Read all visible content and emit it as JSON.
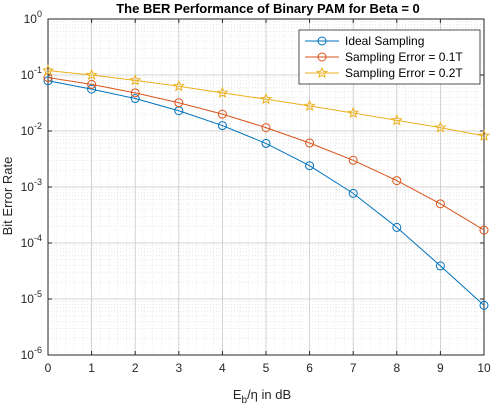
{
  "chart_data": {
    "type": "line",
    "title": "The BER Performance of Binary PAM for Beta = 0",
    "xlabel_main": "E",
    "xlabel_sub": "b",
    "xlabel_rest": "/η in dB",
    "ylabel": "Bit Error Rate",
    "x": [
      0,
      1,
      2,
      3,
      4,
      5,
      6,
      7,
      8,
      9,
      10
    ],
    "xlim": [
      0,
      10
    ],
    "ylim": [
      1e-06,
      1
    ],
    "yscale": "log",
    "grid": true,
    "minor_grid": true,
    "legend_placement": "top-right",
    "x_tick_labels": [
      "0",
      "1",
      "2",
      "3",
      "4",
      "5",
      "6",
      "7",
      "8",
      "9",
      "10"
    ],
    "y_ticks": [
      {
        "value": 1,
        "base": "10",
        "exp": "0"
      },
      {
        "value": 0.1,
        "base": "10",
        "exp": "-1"
      },
      {
        "value": 0.01,
        "base": "10",
        "exp": "-2"
      },
      {
        "value": 0.001,
        "base": "10",
        "exp": "-3"
      },
      {
        "value": 0.0001,
        "base": "10",
        "exp": "-4"
      },
      {
        "value": 1e-05,
        "base": "10",
        "exp": "-5"
      },
      {
        "value": 1e-06,
        "base": "10",
        "exp": "-6"
      }
    ],
    "series": [
      {
        "name": "Ideal Sampling",
        "marker": "circle",
        "color": "#0072BD",
        "values": [
          0.079,
          0.056,
          0.038,
          0.023,
          0.0125,
          0.006,
          0.0024,
          0.00077,
          0.00019,
          3.9e-05,
          7.7e-06
        ]
      },
      {
        "name": "Sampling Error = 0.1T",
        "marker": "circle",
        "color": "#D95319",
        "values": [
          0.09,
          0.068,
          0.048,
          0.032,
          0.02,
          0.0115,
          0.0061,
          0.003,
          0.0013,
          0.0005,
          0.00017
        ]
      },
      {
        "name": "Sampling Error = 0.2T",
        "marker": "star",
        "color": "#EDB120",
        "values": [
          0.12,
          0.1,
          0.08,
          0.063,
          0.048,
          0.037,
          0.028,
          0.021,
          0.0155,
          0.0115,
          0.0082
        ]
      }
    ]
  }
}
